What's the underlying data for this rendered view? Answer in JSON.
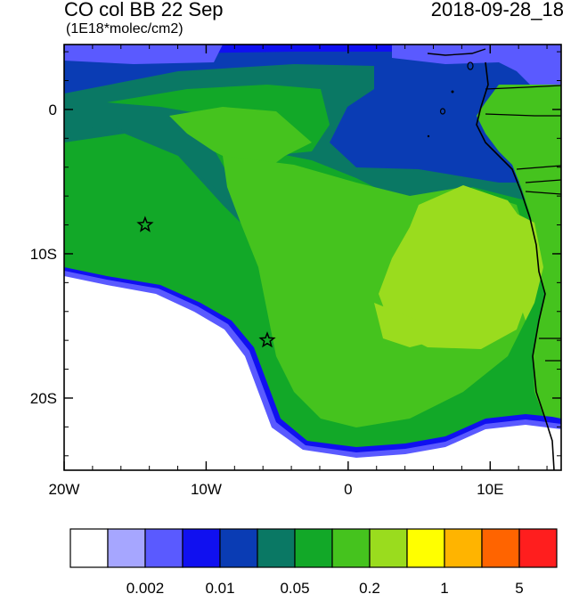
{
  "header": {
    "title": "CO col BB 22 Sep",
    "subtitle": "(1E18*molec/cm2)",
    "datetime": "2018-09-28_18"
  },
  "map": {
    "region": "South-east Atlantic / West coast of southern Africa",
    "x_ticks": [
      "20W",
      "10W",
      "0",
      "10E"
    ],
    "y_ticks": [
      "0",
      "10S",
      "20S"
    ],
    "lon_range": [
      -20,
      15
    ],
    "lat_range": [
      -25,
      4.5
    ],
    "markers": [
      {
        "type": "star",
        "lon": -14.3,
        "lat": -8.0
      },
      {
        "type": "star",
        "lon": -5.7,
        "lat": -16.0
      }
    ]
  },
  "colorbar": {
    "colors": [
      "#ffffff",
      "#a6a6ff",
      "#5a5aff",
      "#1010f0",
      "#0a3cb4",
      "#0a7864",
      "#12a828",
      "#45c31e",
      "#9adc1e",
      "#ffff00",
      "#ffb400",
      "#ff6400",
      "#ff1e1e"
    ],
    "labels": [
      "0.002",
      "0.01",
      "0.05",
      "0.2",
      "1",
      "5"
    ]
  }
}
